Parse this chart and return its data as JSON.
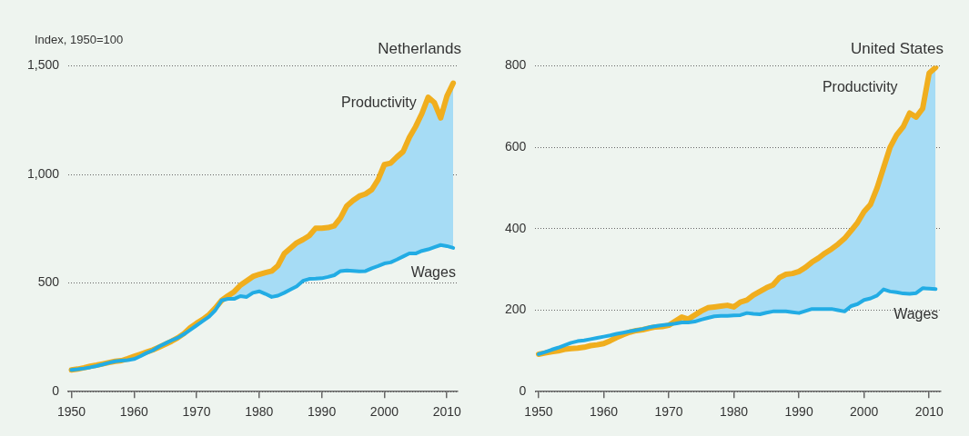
{
  "chart_data": [
    {
      "type": "line",
      "title": "Netherlands",
      "ylabel": "Index, 1950=100",
      "grid": "y",
      "legend": false,
      "x": [
        1950,
        1951,
        1952,
        1953,
        1954,
        1955,
        1956,
        1957,
        1958,
        1959,
        1960,
        1961,
        1962,
        1963,
        1964,
        1965,
        1966,
        1967,
        1968,
        1969,
        1970,
        1971,
        1972,
        1973,
        1974,
        1975,
        1976,
        1977,
        1978,
        1979,
        1980,
        1981,
        1982,
        1983,
        1984,
        1985,
        1986,
        1987,
        1988,
        1989,
        1990,
        1991,
        1992,
        1993,
        1994,
        1995,
        1996,
        1997,
        1998,
        1999,
        2000,
        2001,
        2002,
        2003,
        2004,
        2005,
        2006,
        2007,
        2008,
        2009,
        2010,
        2011
      ],
      "xlim": [
        1949.5,
        2011.7
      ],
      "xticks": [
        1950,
        1960,
        1970,
        1980,
        1990,
        2000,
        2010
      ],
      "ylim": [
        0,
        1500
      ],
      "yticks": [
        0,
        {
          "value": 500,
          "label": "500"
        },
        {
          "value": 1000,
          "label": "1,000"
        },
        {
          "value": 1500,
          "label": "1,500"
        }
      ],
      "series": [
        {
          "name": "Productivity",
          "color": "#f0ae1e",
          "values": [
            100,
            104,
            110,
            117,
            122,
            128,
            134,
            140,
            143,
            152,
            162,
            172,
            182,
            192,
            205,
            218,
            232,
            248,
            268,
            295,
            315,
            333,
            355,
            385,
            420,
            441,
            460,
            490,
            510,
            530,
            540,
            548,
            555,
            580,
            635,
            660,
            685,
            700,
            718,
            752,
            752,
            755,
            763,
            800,
            855,
            880,
            900,
            910,
            930,
            975,
            1045,
            1052,
            1080,
            1105,
            1170,
            1220,
            1280,
            1355,
            1330,
            1260,
            1360,
            1420
          ]
        },
        {
          "name": "Wages",
          "color": "#22ace4",
          "values": [
            100,
            103,
            107,
            112,
            118,
            125,
            133,
            140,
            143,
            145,
            150,
            163,
            178,
            190,
            208,
            222,
            236,
            248,
            265,
            285,
            305,
            325,
            345,
            375,
            420,
            427,
            427,
            440,
            436,
            455,
            462,
            450,
            436,
            442,
            455,
            470,
            485,
            510,
            519,
            520,
            522,
            528,
            536,
            555,
            558,
            556,
            554,
            555,
            568,
            578,
            590,
            595,
            608,
            622,
            636,
            636,
            648,
            655,
            665,
            675,
            670,
            662
          ]
        }
      ]
    },
    {
      "type": "line",
      "title": "United States",
      "grid": "y",
      "legend": false,
      "x": [
        1950,
        1951,
        1952,
        1953,
        1954,
        1955,
        1956,
        1957,
        1958,
        1959,
        1960,
        1961,
        1962,
        1963,
        1964,
        1965,
        1966,
        1967,
        1968,
        1969,
        1970,
        1971,
        1972,
        1973,
        1974,
        1975,
        1976,
        1977,
        1978,
        1979,
        1980,
        1981,
        1982,
        1983,
        1984,
        1985,
        1986,
        1987,
        1988,
        1989,
        1990,
        1991,
        1992,
        1993,
        1994,
        1995,
        1996,
        1997,
        1998,
        1999,
        2000,
        2001,
        2002,
        2003,
        2004,
        2005,
        2006,
        2007,
        2008,
        2009,
        2010,
        2011
      ],
      "xlim": [
        1949.5,
        2011.7
      ],
      "xticks": [
        1950,
        1960,
        1970,
        1980,
        1990,
        2000,
        2010
      ],
      "ylim": [
        0,
        800
      ],
      "yticks": [
        0,
        200,
        400,
        600,
        800
      ],
      "series": [
        {
          "name": "Productivity",
          "color": "#f0ae1e",
          "values": [
            92,
            95,
            98,
            100,
            104,
            106,
            107,
            109,
            113,
            115,
            118,
            125,
            133,
            140,
            146,
            150,
            152,
            156,
            159,
            160,
            163,
            173,
            183,
            178,
            188,
            198,
            206,
            208,
            210,
            212,
            208,
            220,
            225,
            237,
            246,
            255,
            262,
            280,
            288,
            290,
            295,
            305,
            318,
            328,
            340,
            350,
            362,
            376,
            395,
            415,
            442,
            460,
            500,
            550,
            600,
            630,
            650,
            684,
            674,
            695,
            782,
            796
          ]
        },
        {
          "name": "Wages",
          "color": "#22ace4",
          "values": [
            92,
            97,
            103,
            108,
            114,
            120,
            124,
            126,
            129,
            132,
            135,
            138,
            142,
            145,
            148,
            151,
            154,
            158,
            161,
            163,
            165,
            167,
            170,
            170,
            172,
            177,
            181,
            185,
            186,
            186,
            187,
            188,
            193,
            191,
            190,
            194,
            197,
            197,
            197,
            195,
            193,
            198,
            203,
            203,
            203,
            203,
            200,
            197,
            210,
            215,
            225,
            229,
            236,
            251,
            246,
            244,
            241,
            240,
            242,
            254,
            253,
            252
          ]
        }
      ]
    }
  ]
}
